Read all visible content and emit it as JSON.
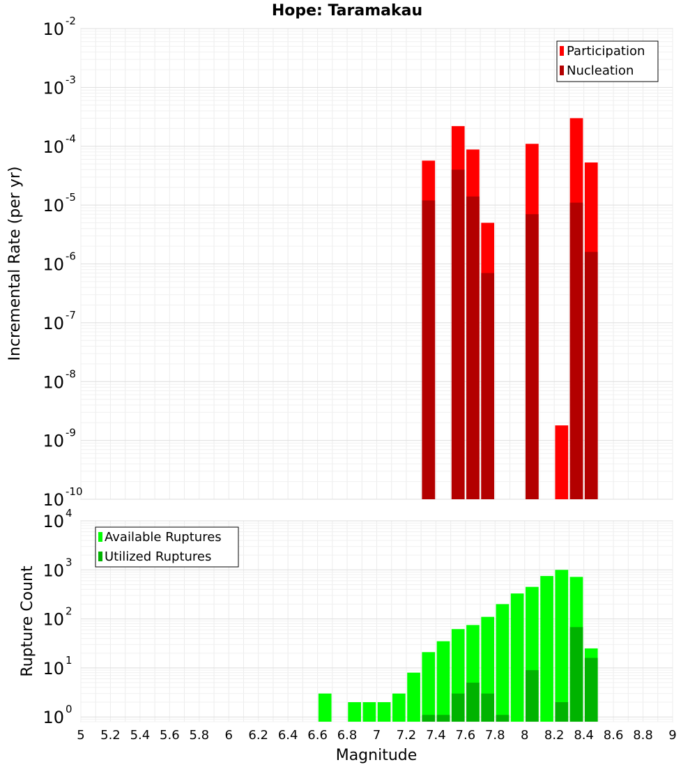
{
  "chart_data": [
    {
      "type": "bar",
      "title": "Hope: Taramakau",
      "ylabel": "Incremental Rate (per yr)",
      "yscale": "log",
      "ylim": [
        1e-10,
        0.01
      ],
      "y_ticks": [
        {
          "base": "10",
          "exp": "-2",
          "value": 0.01
        },
        {
          "base": "10",
          "exp": "-3",
          "value": 0.001
        },
        {
          "base": "10",
          "exp": "-4",
          "value": 0.0001
        },
        {
          "base": "10",
          "exp": "-5",
          "value": 1e-05
        },
        {
          "base": "10",
          "exp": "-6",
          "value": 1e-06
        },
        {
          "base": "10",
          "exp": "-7",
          "value": 1e-07
        },
        {
          "base": "10",
          "exp": "-8",
          "value": 1e-08
        },
        {
          "base": "10",
          "exp": "-9",
          "value": 1e-09
        },
        {
          "base": "10",
          "exp": "-10",
          "value": 1e-10
        }
      ],
      "legend_position": "top-right",
      "grid": true,
      "series": [
        {
          "name": "Participation",
          "color": "#ff0000",
          "points": [
            {
              "x": 7.35,
              "y": 5.7e-05
            },
            {
              "x": 7.55,
              "y": 0.00022
            },
            {
              "x": 7.65,
              "y": 8.8e-05
            },
            {
              "x": 7.75,
              "y": 5e-06
            },
            {
              "x": 8.05,
              "y": 0.00011
            },
            {
              "x": 8.25,
              "y": 1.8e-09
            },
            {
              "x": 8.35,
              "y": 0.0003
            },
            {
              "x": 8.45,
              "y": 5.3e-05
            }
          ]
        },
        {
          "name": "Nucleation",
          "color": "#b30000",
          "points": [
            {
              "x": 7.35,
              "y": 1.2e-05
            },
            {
              "x": 7.55,
              "y": 4e-05
            },
            {
              "x": 7.65,
              "y": 1.4e-05
            },
            {
              "x": 7.75,
              "y": 7e-07
            },
            {
              "x": 8.05,
              "y": 7e-06
            },
            {
              "x": 8.35,
              "y": 1.1e-05
            },
            {
              "x": 8.45,
              "y": 1.6e-06
            }
          ]
        }
      ]
    },
    {
      "type": "bar",
      "xlabel": "Magnitude",
      "ylabel": "Rupture Count",
      "yscale": "log",
      "ylim": [
        0.8,
        10000
      ],
      "xlim": [
        5,
        9
      ],
      "x_ticks": [
        "5",
        "5.2",
        "5.4",
        "5.6",
        "5.8",
        "6",
        "6.2",
        "6.4",
        "6.6",
        "6.8",
        "7",
        "7.2",
        "7.4",
        "7.6",
        "7.8",
        "8",
        "8.2",
        "8.4",
        "8.6",
        "8.8",
        "9"
      ],
      "y_ticks": [
        {
          "base": "10",
          "exp": "4",
          "value": 10000
        },
        {
          "base": "10",
          "exp": "3",
          "value": 1000
        },
        {
          "base": "10",
          "exp": "2",
          "value": 100
        },
        {
          "base": "10",
          "exp": "1",
          "value": 10
        },
        {
          "base": "10",
          "exp": "0",
          "value": 1
        }
      ],
      "legend_position": "top-left",
      "grid": true,
      "series": [
        {
          "name": "Available Ruptures",
          "color": "#00ff00",
          "points": [
            {
              "x": 6.65,
              "y": 3
            },
            {
              "x": 6.85,
              "y": 2
            },
            {
              "x": 6.95,
              "y": 2
            },
            {
              "x": 7.05,
              "y": 2
            },
            {
              "x": 7.15,
              "y": 3
            },
            {
              "x": 7.25,
              "y": 8
            },
            {
              "x": 7.35,
              "y": 21
            },
            {
              "x": 7.45,
              "y": 35
            },
            {
              "x": 7.55,
              "y": 62
            },
            {
              "x": 7.65,
              "y": 75
            },
            {
              "x": 7.75,
              "y": 110
            },
            {
              "x": 7.85,
              "y": 200
            },
            {
              "x": 7.95,
              "y": 330
            },
            {
              "x": 8.05,
              "y": 450
            },
            {
              "x": 8.15,
              "y": 750
            },
            {
              "x": 8.25,
              "y": 1000
            },
            {
              "x": 8.35,
              "y": 720
            },
            {
              "x": 8.45,
              "y": 25
            }
          ]
        },
        {
          "name": "Utilized Ruptures",
          "color": "#00b300",
          "points": [
            {
              "x": 7.35,
              "y": 1.1
            },
            {
              "x": 7.45,
              "y": 1.1
            },
            {
              "x": 7.55,
              "y": 3
            },
            {
              "x": 7.65,
              "y": 5
            },
            {
              "x": 7.75,
              "y": 3
            },
            {
              "x": 7.85,
              "y": 1.1
            },
            {
              "x": 8.05,
              "y": 9
            },
            {
              "x": 8.25,
              "y": 2
            },
            {
              "x": 8.35,
              "y": 68
            },
            {
              "x": 8.45,
              "y": 16
            }
          ]
        }
      ]
    }
  ]
}
